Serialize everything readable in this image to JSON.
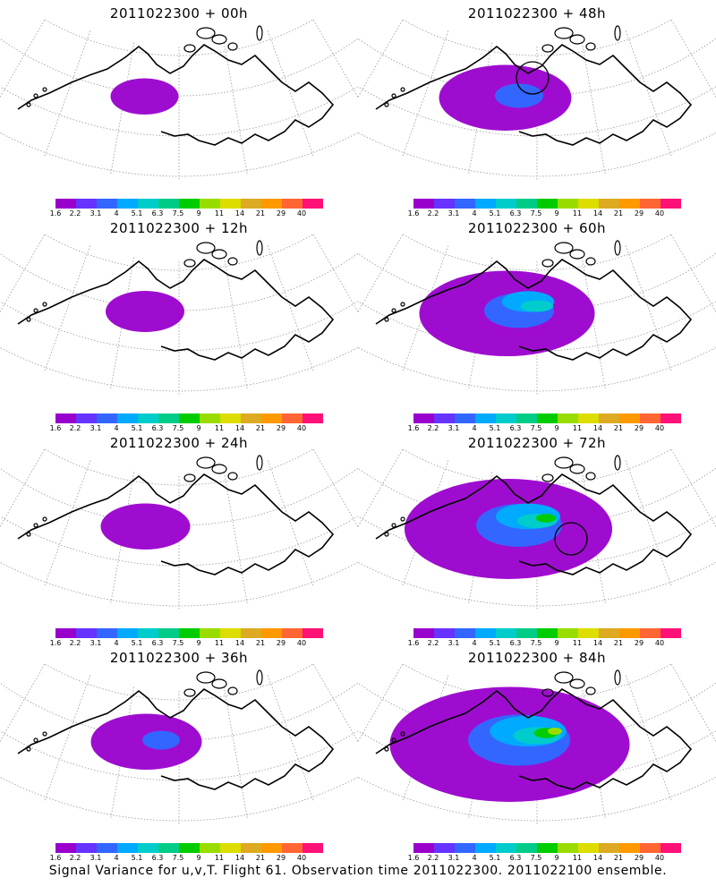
{
  "colorbar": {
    "colors": [
      "#9900cc",
      "#6633ff",
      "#3366ff",
      "#00aaff",
      "#00cccc",
      "#00cc88",
      "#00cc00",
      "#99dd00",
      "#dddd00",
      "#ddaa22",
      "#ff9900",
      "#ff6633",
      "#ff1177"
    ],
    "labels": [
      "1.6",
      "2.2",
      "3.1",
      "4",
      "5.1",
      "6.3",
      "7.5",
      "9",
      "11",
      "14",
      "21",
      "29",
      "40"
    ]
  },
  "panels": [
    {
      "title": "2011022300 + 00h",
      "spread": 0.15,
      "circle": false
    },
    {
      "title": "2011022300 + 48h",
      "spread": 0.45,
      "circle": true
    },
    {
      "title": "2011022300 + 12h",
      "spread": 0.2,
      "circle": false
    },
    {
      "title": "2011022300 + 60h",
      "spread": 0.65,
      "circle": false
    },
    {
      "title": "2011022300 + 24h",
      "spread": 0.25,
      "circle": false
    },
    {
      "title": "2011022300 + 72h",
      "spread": 0.8,
      "circle": true
    },
    {
      "title": "2011022300 + 36h",
      "spread": 0.35,
      "circle": false
    },
    {
      "title": "2011022300 + 84h",
      "spread": 0.95,
      "circle": false
    }
  ],
  "footer": "Signal Variance for u,v,T. Flight 61. Observation time 2011022300. 2011022100 ensemble."
}
